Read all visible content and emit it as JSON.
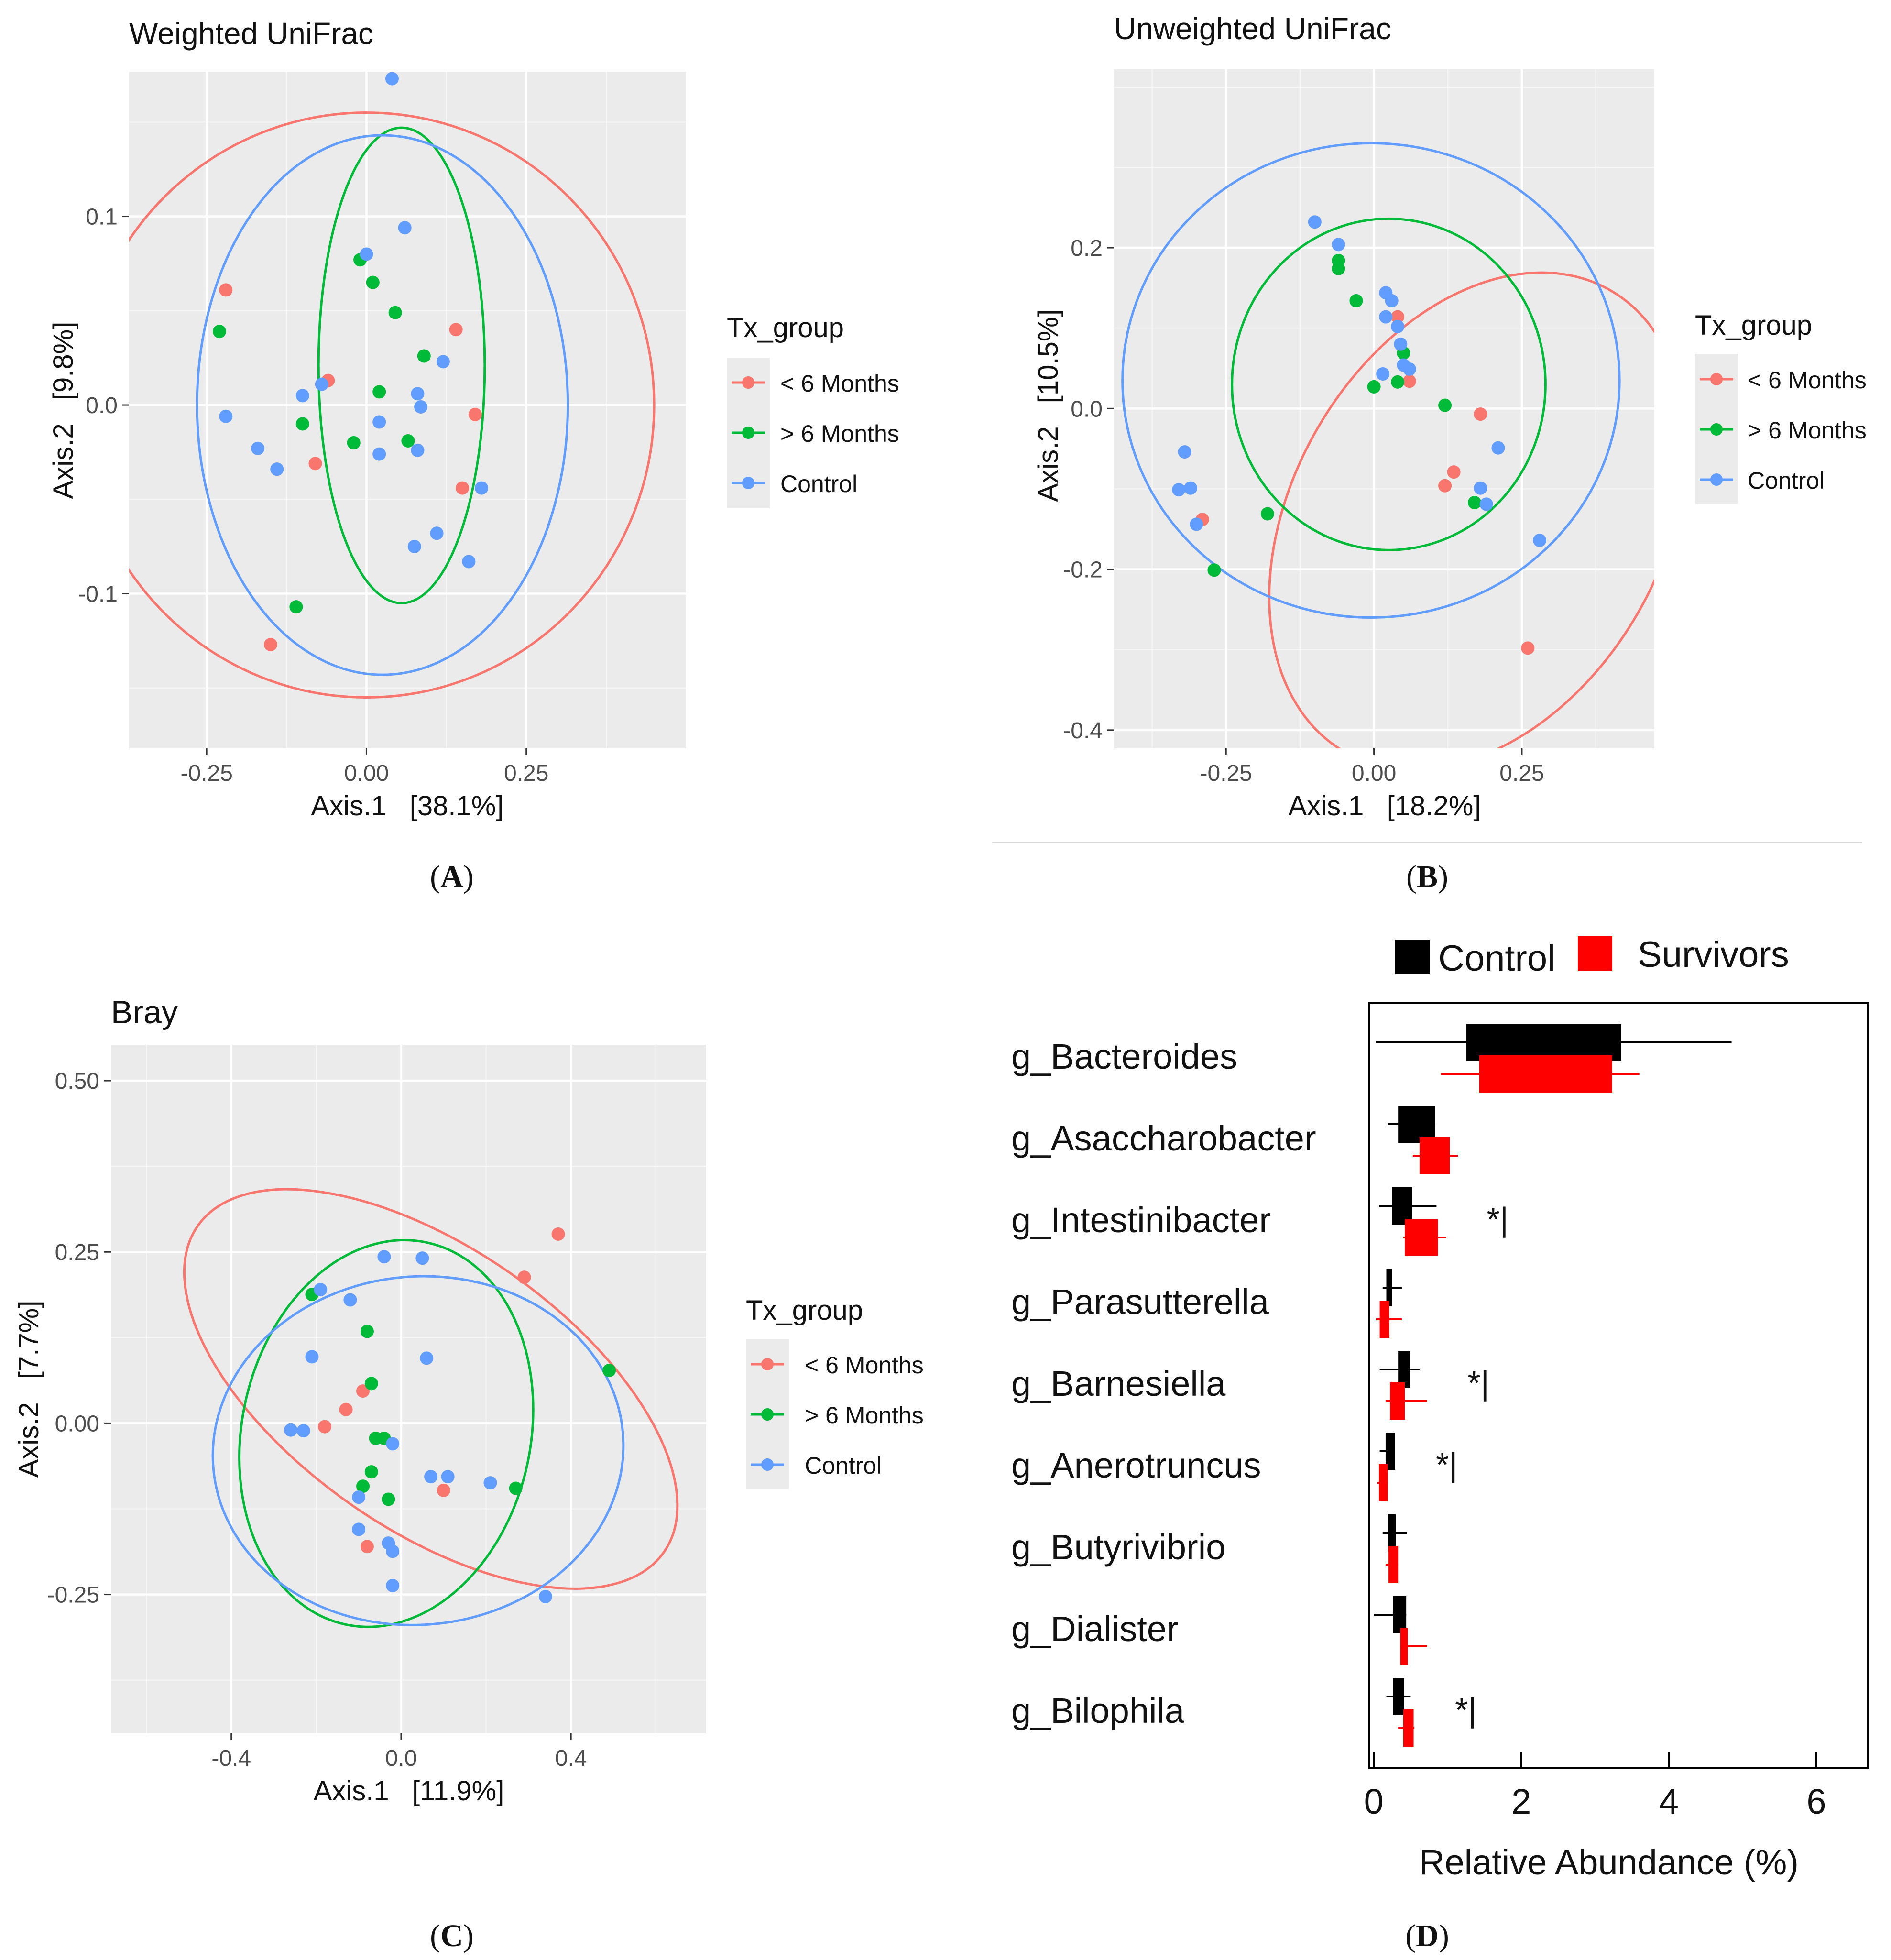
{
  "panels": [
    {
      "id": "A",
      "panel_label": "A",
      "title": "Weighted UniFrac",
      "xlabel": "Axis.1   [38.1%]",
      "ylabel": "Axis.2   [9.8%]",
      "legend_title": "Tx_group",
      "legend_items": [
        "< 6 Months",
        "> 6 Months",
        "Control"
      ]
    },
    {
      "id": "B",
      "panel_label": "B",
      "title": "Unweighted UniFrac",
      "xlabel": "Axis.1   [18.2%]",
      "ylabel": "Axis.2   [10.5%]",
      "legend_title": "Tx_group",
      "legend_items": [
        "< 6 Months",
        "> 6 Months",
        "Control"
      ]
    },
    {
      "id": "C",
      "panel_label": "C",
      "title": "Bray",
      "xlabel": "Axis.1   [11.9%]",
      "ylabel": "Axis.2   [7.7%]",
      "legend_title": "Tx_group",
      "legend_items": [
        "< 6 Months",
        "> 6 Months",
        "Control"
      ]
    },
    {
      "id": "D",
      "panel_label": "D",
      "xlabel": "Relative Abundance (%)",
      "legend_items": [
        "Control",
        "Survivors"
      ]
    }
  ],
  "colors": {
    "lt6": "#F8766D",
    "gt6": "#00BA38",
    "control": "#619CFF",
    "bar_control": "#000000",
    "bar_survivors": "#FF0000",
    "plot_bg": "#EBEBEB",
    "grid": "#FFFFFF"
  },
  "chart_data": [
    {
      "type": "scatter",
      "title": "Weighted UniFrac",
      "xlabel": "Axis.1   [38.1%]",
      "ylabel": "Axis.2   [9.8%]",
      "xlim": [
        -0.3713,
        0.5
      ],
      "ylim": [
        -0.182,
        0.1767
      ],
      "xticks": [
        -0.25,
        0.0,
        0.25
      ],
      "xtick_labels": [
        "-0.25",
        "0.00",
        "0.25"
      ],
      "yticks": [
        -0.1,
        0.0,
        0.1
      ],
      "ytick_labels": [
        "-0.1",
        "0.0",
        "0.1"
      ],
      "grid": true,
      "legend": "right",
      "series": [
        {
          "name": "< 6 Months",
          "x": [
            -0.22,
            -0.06,
            -0.08,
            0.14,
            0.17,
            0.15,
            -0.15
          ],
          "y": [
            0.061,
            0.013,
            -0.031,
            0.04,
            -0.005,
            -0.044,
            -0.127
          ],
          "ellipse": {
            "cx": 0.0,
            "cy": 0.0,
            "rx": 0.45,
            "ry": 0.155,
            "angle": 0
          }
        },
        {
          "name": "> 6 Months",
          "x": [
            -0.23,
            -0.1,
            -0.01,
            0.01,
            0.045,
            0.09,
            0.02,
            -0.02,
            0.065,
            -0.11
          ],
          "y": [
            0.039,
            -0.01,
            0.077,
            0.065,
            0.049,
            0.026,
            0.007,
            -0.02,
            -0.019,
            -0.107
          ],
          "ellipse": {
            "cx": 0.055,
            "cy": 0.021,
            "rx": 0.13,
            "ry": 0.126,
            "angle": 0
          }
        },
        {
          "name": "Control",
          "x": [
            0.04,
            0.06,
            0.0,
            -0.22,
            -0.07,
            -0.1,
            -0.17,
            -0.14,
            0.02,
            0.02,
            0.08,
            0.085,
            0.12,
            0.08,
            0.18,
            0.11,
            0.075,
            0.16
          ],
          "y": [
            0.173,
            0.094,
            0.08,
            -0.006,
            0.011,
            0.005,
            -0.023,
            -0.034,
            -0.009,
            -0.026,
            0.006,
            -0.001,
            0.023,
            -0.024,
            -0.044,
            -0.068,
            -0.075,
            -0.083
          ],
          "ellipse": {
            "cx": 0.025,
            "cy": 0.0,
            "rx": 0.29,
            "ry": 0.143,
            "angle": 0
          }
        }
      ]
    },
    {
      "type": "scatter",
      "title": "Unweighted UniFrac",
      "xlabel": "Axis.1   [18.2%]",
      "ylabel": "Axis.2   [10.5%]",
      "xlim": [
        -0.4393,
        0.4739
      ],
      "ylim": [
        -0.4227,
        0.4219
      ],
      "xticks": [
        -0.25,
        0.0,
        0.25
      ],
      "xtick_labels": [
        "-0.25",
        "0.00",
        "0.25"
      ],
      "yticks": [
        -0.4,
        -0.2,
        0.0,
        0.2
      ],
      "ytick_labels": [
        "-0.4",
        "-0.2",
        "0.0",
        "0.2"
      ],
      "grid": true,
      "legend": "right",
      "series": [
        {
          "name": "< 6 Months",
          "x": [
            0.04,
            0.06,
            0.18,
            0.135,
            0.12,
            -0.29,
            0.26
          ],
          "y": [
            0.114,
            0.034,
            -0.007,
            -0.079,
            -0.096,
            -0.138,
            -0.298
          ],
          "ellipse": {
            "cx": 0.175,
            "cy": -0.14,
            "rx": 0.45,
            "ry": 0.23,
            "angle": 60
          }
        },
        {
          "name": "> 6 Months",
          "x": [
            -0.06,
            -0.06,
            -0.03,
            0.05,
            0.0,
            0.04,
            0.12,
            0.17,
            -0.18,
            -0.27
          ],
          "y": [
            0.184,
            0.174,
            0.134,
            0.069,
            0.027,
            0.033,
            0.004,
            -0.117,
            -0.131,
            -0.201
          ],
          "ellipse": {
            "cx": 0.025,
            "cy": 0.03,
            "rx": 0.28,
            "ry": 0.195,
            "angle": 90
          }
        },
        {
          "name": "Control",
          "x": [
            -0.1,
            -0.06,
            0.02,
            0.03,
            0.02,
            0.04,
            0.045,
            0.05,
            0.06,
            0.015,
            0.21,
            0.18,
            0.19,
            -0.32,
            -0.33,
            -0.31,
            -0.3,
            0.28
          ],
          "y": [
            0.232,
            0.204,
            0.144,
            0.134,
            0.114,
            0.102,
            0.08,
            0.054,
            0.049,
            0.043,
            -0.049,
            -0.099,
            -0.119,
            -0.054,
            -0.101,
            -0.099,
            -0.144,
            -0.164
          ],
          "ellipse": {
            "cx": -0.005,
            "cy": 0.035,
            "rx": 0.42,
            "ry": 0.295,
            "angle": 0
          }
        }
      ]
    },
    {
      "type": "scatter",
      "title": "Bray",
      "xlabel": "Axis.1   [11.9%]",
      "ylabel": "Axis.2   [7.7%]",
      "xlim": [
        -0.6835,
        0.7185
      ],
      "ylim": [
        -0.4527,
        0.5524
      ],
      "xticks": [
        -0.4,
        0.0,
        0.4
      ],
      "xtick_labels": [
        "-0.4",
        "0.0",
        "0.4"
      ],
      "yticks": [
        -0.25,
        0.0,
        0.25,
        0.5
      ],
      "ytick_labels": [
        "-0.25",
        "0.00",
        "0.25",
        "0.50"
      ],
      "grid": true,
      "legend": "right",
      "series": [
        {
          "name": "< 6 Months",
          "x": [
            0.37,
            0.29,
            -0.09,
            -0.13,
            -0.18,
            0.1,
            -0.08
          ],
          "y": [
            0.276,
            0.213,
            0.047,
            0.02,
            -0.005,
            -0.098,
            -0.18
          ],
          "ellipse": {
            "cx": 0.07,
            "cy": 0.05,
            "rx": 0.67,
            "ry": 0.205,
            "angle": -35
          }
        },
        {
          "name": "> 6 Months",
          "x": [
            -0.21,
            -0.08,
            -0.07,
            -0.06,
            -0.04,
            -0.07,
            -0.09,
            -0.03,
            0.27,
            0.49
          ],
          "y": [
            0.188,
            0.134,
            0.058,
            -0.022,
            -0.022,
            -0.071,
            -0.092,
            -0.111,
            -0.095,
            0.077
          ],
          "ellipse": {
            "cx": -0.035,
            "cy": -0.015,
            "rx": 0.34,
            "ry": 0.285,
            "angle": -12
          }
        },
        {
          "name": "Control",
          "x": [
            -0.04,
            0.05,
            -0.19,
            -0.12,
            0.06,
            -0.21,
            -0.26,
            -0.23,
            -0.02,
            0.07,
            0.11,
            0.21,
            -0.1,
            -0.1,
            -0.03,
            -0.02,
            -0.02,
            0.34
          ],
          "y": [
            0.243,
            0.241,
            0.195,
            0.18,
            0.095,
            0.097,
            -0.01,
            -0.011,
            -0.03,
            -0.078,
            -0.078,
            -0.087,
            -0.108,
            -0.155,
            -0.175,
            -0.187,
            -0.237,
            -0.253
          ],
          "ellipse": {
            "cx": 0.04,
            "cy": -0.04,
            "rx": 0.41,
            "ry": 0.3,
            "angle": 95
          }
        }
      ]
    },
    {
      "type": "bar",
      "orientation": "horizontal",
      "xlabel": "Relative Abundance (%)",
      "xlim": [
        -0.06,
        6.7
      ],
      "xticks": [
        0,
        2,
        4,
        6
      ],
      "xtick_labels": [
        "0",
        "2",
        "4",
        "6"
      ],
      "legend": "top",
      "categories": [
        "g_Bacteroides",
        "g_Asaccharobacter",
        "g_Intestinibacter",
        "g_Parasutterella",
        "g_Barnesiella",
        "g_Anerotruncus",
        "g_Butyrivibrio",
        "g_Dialister",
        "g_Bilophila"
      ],
      "significance": [
        "",
        "",
        "*|",
        "",
        "*|",
        "*|",
        "",
        "",
        "*|"
      ],
      "series": [
        {
          "name": "Control",
          "start": [
            1.25,
            0.33,
            0.25,
            0.17,
            0.33,
            0.16,
            0.19,
            0.26,
            0.26
          ],
          "end": [
            3.35,
            0.83,
            0.52,
            0.25,
            0.49,
            0.29,
            0.3,
            0.44,
            0.41
          ],
          "err_lo": [
            0.03,
            0.19,
            0.07,
            0.12,
            0.08,
            0.08,
            0.12,
            0.0,
            0.17
          ],
          "err_hi": [
            4.85,
            0.83,
            0.85,
            0.38,
            0.62,
            0.29,
            0.45,
            0.44,
            0.5
          ]
        },
        {
          "name": "Survivors",
          "start": [
            1.43,
            0.62,
            0.42,
            0.08,
            0.22,
            0.07,
            0.2,
            0.36,
            0.4
          ],
          "end": [
            3.23,
            1.03,
            0.87,
            0.21,
            0.42,
            0.19,
            0.33,
            0.46,
            0.54
          ],
          "err_lo": [
            0.91,
            0.53,
            0.4,
            0.03,
            0.16,
            0.05,
            0.16,
            0.36,
            0.33
          ],
          "err_hi": [
            3.6,
            1.14,
            0.98,
            0.38,
            0.72,
            0.19,
            0.33,
            0.72,
            0.55
          ]
        }
      ]
    }
  ]
}
